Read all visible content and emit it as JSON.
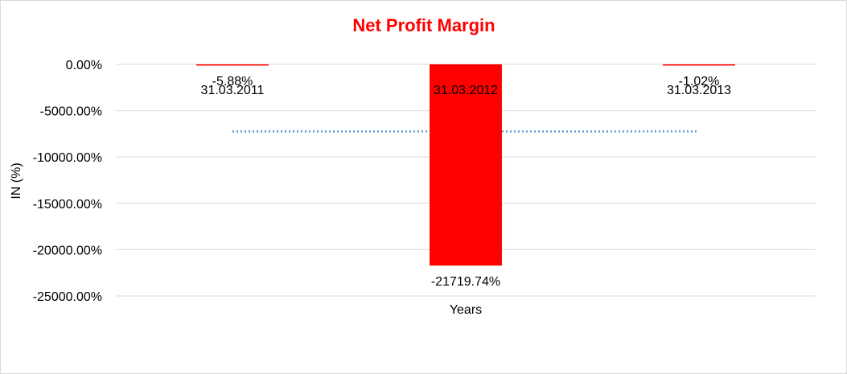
{
  "chart_data": {
    "type": "bar",
    "title": "Net Profit Margin",
    "xlabel": "Years",
    "ylabel": "IN (%)",
    "categories": [
      "31.03.2011",
      "31.03.2012",
      "31.03.2013"
    ],
    "values": [
      -5.88,
      -21719.74,
      -1.02
    ],
    "value_labels": [
      "-5.88%",
      "-21719.74%",
      "-1.02%"
    ],
    "ylim": [
      -25000,
      0
    ],
    "yticks": [
      0,
      -5000,
      -10000,
      -15000,
      -20000,
      -25000
    ],
    "ytick_labels": [
      "0.00%",
      "-5000.00%",
      "-10000.00%",
      "-15000.00%",
      "-20000.00%",
      "-25000.00%"
    ],
    "grid": true,
    "legend": "none",
    "reference_line": {
      "style": "dotted",
      "value": -7242.21
    },
    "colors": {
      "bar": "#ff0000",
      "title": "#ff0000",
      "gridline": "#d9d9d9",
      "reference_line": "#5b9bd5"
    }
  }
}
